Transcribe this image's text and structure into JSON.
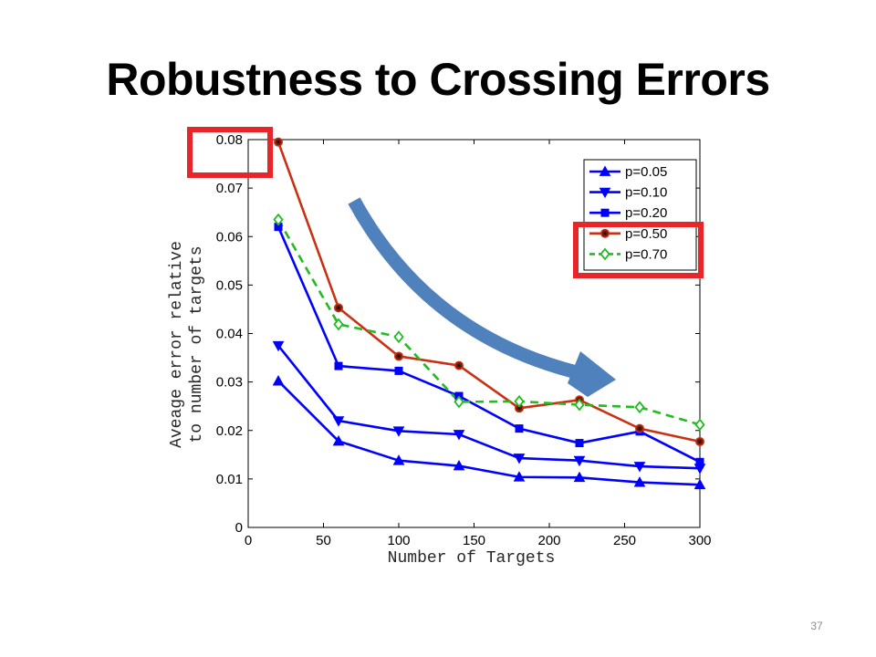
{
  "slide": {
    "title": "Robustness to Crossing Errors",
    "page_number": "37"
  },
  "colors": {
    "highlight_box": "#e8262a",
    "arrow": "#4f81bd",
    "blue_series": "#0000ff",
    "red_series": "#c83212",
    "green_series": "#22bb22"
  },
  "chart_data": {
    "type": "line",
    "title": "",
    "xlabel": "Number of Targets",
    "ylabel_lines": [
      "Aveage error relative",
      "to number of targets"
    ],
    "xlim": [
      0,
      300
    ],
    "ylim": [
      0,
      0.08
    ],
    "xticks": [
      0,
      50,
      100,
      150,
      200,
      250,
      300
    ],
    "xtick_labels": [
      "0",
      "50",
      "100",
      "150",
      "200",
      "250",
      "300"
    ],
    "yticks": [
      0,
      0.01,
      0.02,
      0.03,
      0.04,
      0.05,
      0.06,
      0.07,
      0.08
    ],
    "ytick_labels": [
      "0",
      "0.01",
      "0.02",
      "0.03",
      "0.04",
      "0.05",
      "0.06",
      "0.07",
      "0.08"
    ],
    "grid": false,
    "legend_position": "top-right",
    "x": [
      20,
      60,
      100,
      140,
      180,
      220,
      260,
      300
    ],
    "series": [
      {
        "name": "p=0.05",
        "values": [
          0.0302,
          0.0178,
          0.0138,
          0.0127,
          0.0104,
          0.0103,
          0.0093,
          0.0088
        ],
        "color": "#0000ff",
        "marker": "triangle-up",
        "dash": "solid"
      },
      {
        "name": "p=0.10",
        "values": [
          0.0375,
          0.022,
          0.0199,
          0.0192,
          0.0143,
          0.0138,
          0.0126,
          0.0122
        ],
        "color": "#0000ff",
        "marker": "triangle-down",
        "dash": "solid"
      },
      {
        "name": "p=0.20",
        "values": [
          0.062,
          0.0333,
          0.0323,
          0.0271,
          0.0204,
          0.0174,
          0.0198,
          0.0135
        ],
        "color": "#0000ff",
        "marker": "square",
        "dash": "solid"
      },
      {
        "name": "p=0.50",
        "values": [
          0.0795,
          0.0453,
          0.0353,
          0.0334,
          0.0246,
          0.0263,
          0.0204,
          0.0177
        ],
        "color": "#c83212",
        "marker": "circle",
        "dash": "solid"
      },
      {
        "name": "p=0.70",
        "values": [
          0.0635,
          0.0419,
          0.0393,
          0.0259,
          0.026,
          0.0253,
          0.0248,
          0.0212
        ],
        "color": "#22bb22",
        "marker": "diamond",
        "dash": "dashed"
      }
    ]
  }
}
